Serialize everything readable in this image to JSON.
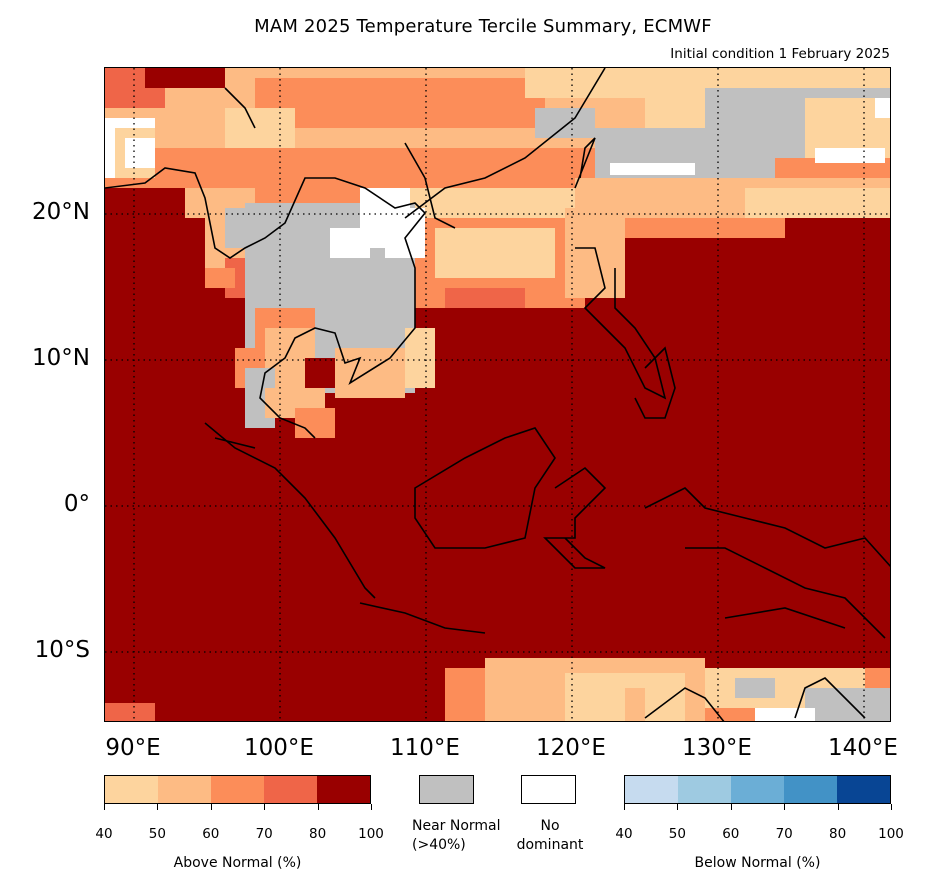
{
  "title": "MAM 2025 Temperature Tercile Summary, ECMWF",
  "subtitle": "Initial condition 1 February 2025",
  "map": {
    "lat_labels": [
      {
        "text": "20°N",
        "lat": 20
      },
      {
        "text": "10°N",
        "lat": 10
      },
      {
        "text": "0°",
        "lat": 0
      },
      {
        "text": "10°S",
        "lat": -10
      }
    ],
    "lon_labels": [
      {
        "text": "90°E",
        "lon": 90
      },
      {
        "text": "100°E",
        "lon": 100
      },
      {
        "text": "110°E",
        "lon": 110
      },
      {
        "text": "120°E",
        "lon": 120
      },
      {
        "text": "130°E",
        "lon": 130
      },
      {
        "text": "140°E",
        "lon": 140
      }
    ],
    "lon_range": [
      88,
      142
    ],
    "lat_range": [
      -15,
      30
    ],
    "gridlines": "dotted",
    "dominant_category": "Above Normal 80-100% over most of the domain"
  },
  "legend": {
    "above_normal": {
      "label": "Above Normal (%)",
      "ticks": [
        "40",
        "50",
        "60",
        "70",
        "80",
        "100"
      ],
      "colors": [
        "#fdd49e",
        "#fdbb84",
        "#fc8d59",
        "#ef6548",
        "#990000"
      ]
    },
    "near_normal": {
      "label": "Near Normal (>40%)",
      "color": "#c0c0c0"
    },
    "no_dominant": {
      "label": "No dominant",
      "color": "#ffffff"
    },
    "below_normal": {
      "label": "Below Normal (%)",
      "ticks": [
        "40",
        "50",
        "60",
        "70",
        "80",
        "100"
      ],
      "colors": [
        "#c6dbef",
        "#9ecae1",
        "#6baed6",
        "#4292c6",
        "#084594"
      ]
    }
  }
}
